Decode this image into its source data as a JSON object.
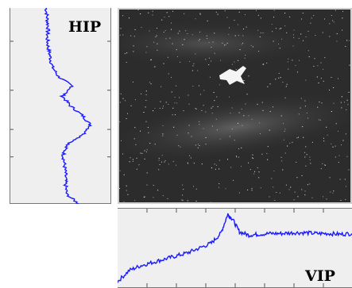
{
  "labels": {
    "hip": "HIP",
    "vip": "VIP"
  },
  "colors": {
    "trace": "#1a1aff",
    "plot_background": "#efefef",
    "image_background": "#2c2c2c",
    "axis": "#555555"
  },
  "chart_data": [
    {
      "type": "line",
      "name": "hip-profile",
      "orientation": "vertical",
      "title": "HIP",
      "y": [
        0.0,
        0.05,
        0.1,
        0.15,
        0.2,
        0.25,
        0.3,
        0.35,
        0.4,
        0.45,
        0.5,
        0.55,
        0.6,
        0.65,
        0.7,
        0.75,
        0.8,
        0.85,
        0.9,
        0.95,
        1.0
      ],
      "x": [
        0.36,
        0.37,
        0.38,
        0.37,
        0.38,
        0.4,
        0.42,
        0.48,
        0.62,
        0.52,
        0.6,
        0.72,
        0.8,
        0.72,
        0.56,
        0.53,
        0.54,
        0.55,
        0.55,
        0.56,
        0.68
      ],
      "xlim": [
        0,
        1
      ],
      "ylim": [
        0,
        1
      ]
    },
    {
      "type": "line",
      "name": "vip-profile",
      "orientation": "horizontal",
      "title": "VIP",
      "x": [
        0.0,
        0.05,
        0.1,
        0.15,
        0.2,
        0.25,
        0.3,
        0.35,
        0.4,
        0.44,
        0.47,
        0.49,
        0.52,
        0.56,
        0.6,
        0.65,
        0.7,
        0.75,
        0.8,
        0.85,
        0.9,
        0.95,
        1.0
      ],
      "y": [
        0.08,
        0.22,
        0.28,
        0.32,
        0.36,
        0.4,
        0.44,
        0.5,
        0.56,
        0.68,
        0.92,
        0.86,
        0.7,
        0.66,
        0.67,
        0.68,
        0.68,
        0.69,
        0.69,
        0.68,
        0.68,
        0.67,
        0.68
      ],
      "xlim": [
        0,
        1
      ],
      "ylim": [
        0,
        1
      ]
    }
  ]
}
